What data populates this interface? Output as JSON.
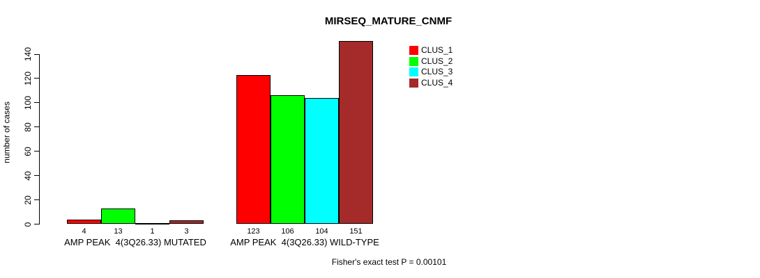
{
  "chart_data": {
    "type": "bar",
    "title": "MIRSEQ_MATURE_CNMF",
    "ylabel": "number of cases",
    "annotation": "Fisher's exact test P = 0.00101",
    "categories": [
      "AMP PEAK  4(3Q26.33) MUTATED",
      "AMP PEAK  4(3Q26.33) WILD-TYPE"
    ],
    "series": [
      {
        "name": "CLUS_1",
        "color": "#FF0000",
        "values": [
          4,
          123
        ]
      },
      {
        "name": "CLUS_2",
        "color": "#00FF00",
        "values": [
          13,
          106
        ]
      },
      {
        "name": "CLUS_3",
        "color": "#00FFFF",
        "values": [
          1,
          104
        ]
      },
      {
        "name": "CLUS_4",
        "color": "#A52A2A",
        "values": [
          3,
          151
        ]
      }
    ],
    "groups": [
      {
        "label": "AMP PEAK  4(3Q26.33) MUTATED",
        "values": [
          4,
          13,
          1,
          3
        ]
      },
      {
        "label": "AMP PEAK  4(3Q26.33) WILD-TYPE",
        "values": [
          123,
          106,
          104,
          151
        ]
      }
    ],
    "bar_value_labels": [
      [
        "4",
        "13",
        "1",
        "3"
      ],
      [
        "123",
        "106",
        "104",
        "151"
      ]
    ],
    "yticks": [
      0,
      20,
      40,
      60,
      80,
      100,
      120,
      140
    ],
    "ylim": [
      0,
      155
    ],
    "grid": false,
    "legend_position": "top-right",
    "legend": {
      "entries": [
        {
          "label": "CLUS_1",
          "color": "#FF0000"
        },
        {
          "label": "CLUS_2",
          "color": "#00FF00"
        },
        {
          "label": "CLUS_3",
          "color": "#00FFFF"
        },
        {
          "label": "CLUS_4",
          "color": "#A52A2A"
        }
      ]
    },
    "colors": {
      "bar_border": "#000000",
      "axis": "#000000",
      "background": "#FFFFFF"
    }
  }
}
